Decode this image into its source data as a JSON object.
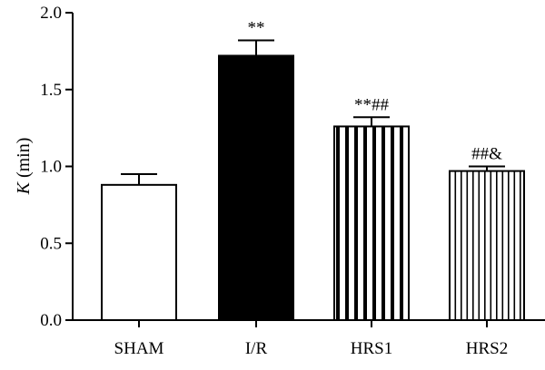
{
  "chart_data": {
    "type": "bar",
    "title": "",
    "xlabel": "",
    "ylabel": "(min)",
    "ylabel_italic": "K",
    "ylim": [
      0,
      2.0
    ],
    "yticks": [
      "0.0",
      "0.5",
      "1.0",
      "1.5",
      "2.0"
    ],
    "grid": false,
    "categories": [
      "SHAM",
      "I/R",
      "HRS1",
      "HRS2"
    ],
    "values": [
      0.88,
      1.72,
      1.26,
      0.97
    ],
    "errors": [
      0.07,
      0.1,
      0.06,
      0.03
    ],
    "annotations": [
      "",
      "**",
      "**##",
      "##&"
    ],
    "bar_styles": [
      "open",
      "solid",
      "wide-stripes",
      "narrow-stripes"
    ],
    "bar_color": "#000000"
  }
}
